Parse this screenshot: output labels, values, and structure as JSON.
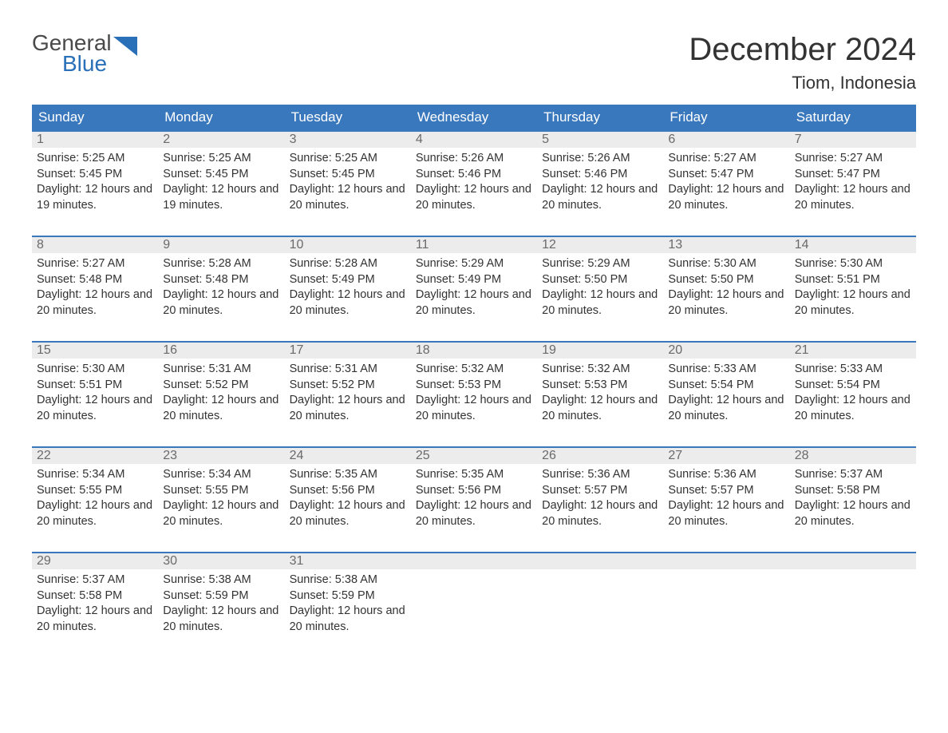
{
  "logo": {
    "word1": "General",
    "word2": "Blue",
    "word1_color": "#4a4a4a",
    "word2_color": "#2a70b8",
    "triangle_color": "#2a70b8"
  },
  "title": "December 2024",
  "location": "Tiom, Indonesia",
  "colors": {
    "header_bg": "#3a78bd",
    "header_text": "#ffffff",
    "daynum_bg": "#ececec",
    "daynum_text": "#6a6a6a",
    "body_text": "#333333",
    "week_border": "#3a78bd",
    "page_bg": "#ffffff"
  },
  "typography": {
    "title_fontsize": 40,
    "location_fontsize": 22,
    "weekday_fontsize": 17,
    "daynum_fontsize": 16,
    "body_fontsize": 14.5,
    "font_family": "Arial"
  },
  "weekdays": [
    "Sunday",
    "Monday",
    "Tuesday",
    "Wednesday",
    "Thursday",
    "Friday",
    "Saturday"
  ],
  "labels": {
    "sunrise": "Sunrise:",
    "sunset": "Sunset:",
    "daylight": "Daylight:"
  },
  "weeks": [
    [
      {
        "n": "1",
        "sunrise": "5:25 AM",
        "sunset": "5:45 PM",
        "daylight": "12 hours and 19 minutes."
      },
      {
        "n": "2",
        "sunrise": "5:25 AM",
        "sunset": "5:45 PM",
        "daylight": "12 hours and 19 minutes."
      },
      {
        "n": "3",
        "sunrise": "5:25 AM",
        "sunset": "5:45 PM",
        "daylight": "12 hours and 20 minutes."
      },
      {
        "n": "4",
        "sunrise": "5:26 AM",
        "sunset": "5:46 PM",
        "daylight": "12 hours and 20 minutes."
      },
      {
        "n": "5",
        "sunrise": "5:26 AM",
        "sunset": "5:46 PM",
        "daylight": "12 hours and 20 minutes."
      },
      {
        "n": "6",
        "sunrise": "5:27 AM",
        "sunset": "5:47 PM",
        "daylight": "12 hours and 20 minutes."
      },
      {
        "n": "7",
        "sunrise": "5:27 AM",
        "sunset": "5:47 PM",
        "daylight": "12 hours and 20 minutes."
      }
    ],
    [
      {
        "n": "8",
        "sunrise": "5:27 AM",
        "sunset": "5:48 PM",
        "daylight": "12 hours and 20 minutes."
      },
      {
        "n": "9",
        "sunrise": "5:28 AM",
        "sunset": "5:48 PM",
        "daylight": "12 hours and 20 minutes."
      },
      {
        "n": "10",
        "sunrise": "5:28 AM",
        "sunset": "5:49 PM",
        "daylight": "12 hours and 20 minutes."
      },
      {
        "n": "11",
        "sunrise": "5:29 AM",
        "sunset": "5:49 PM",
        "daylight": "12 hours and 20 minutes."
      },
      {
        "n": "12",
        "sunrise": "5:29 AM",
        "sunset": "5:50 PM",
        "daylight": "12 hours and 20 minutes."
      },
      {
        "n": "13",
        "sunrise": "5:30 AM",
        "sunset": "5:50 PM",
        "daylight": "12 hours and 20 minutes."
      },
      {
        "n": "14",
        "sunrise": "5:30 AM",
        "sunset": "5:51 PM",
        "daylight": "12 hours and 20 minutes."
      }
    ],
    [
      {
        "n": "15",
        "sunrise": "5:30 AM",
        "sunset": "5:51 PM",
        "daylight": "12 hours and 20 minutes."
      },
      {
        "n": "16",
        "sunrise": "5:31 AM",
        "sunset": "5:52 PM",
        "daylight": "12 hours and 20 minutes."
      },
      {
        "n": "17",
        "sunrise": "5:31 AM",
        "sunset": "5:52 PM",
        "daylight": "12 hours and 20 minutes."
      },
      {
        "n": "18",
        "sunrise": "5:32 AM",
        "sunset": "5:53 PM",
        "daylight": "12 hours and 20 minutes."
      },
      {
        "n": "19",
        "sunrise": "5:32 AM",
        "sunset": "5:53 PM",
        "daylight": "12 hours and 20 minutes."
      },
      {
        "n": "20",
        "sunrise": "5:33 AM",
        "sunset": "5:54 PM",
        "daylight": "12 hours and 20 minutes."
      },
      {
        "n": "21",
        "sunrise": "5:33 AM",
        "sunset": "5:54 PM",
        "daylight": "12 hours and 20 minutes."
      }
    ],
    [
      {
        "n": "22",
        "sunrise": "5:34 AM",
        "sunset": "5:55 PM",
        "daylight": "12 hours and 20 minutes."
      },
      {
        "n": "23",
        "sunrise": "5:34 AM",
        "sunset": "5:55 PM",
        "daylight": "12 hours and 20 minutes."
      },
      {
        "n": "24",
        "sunrise": "5:35 AM",
        "sunset": "5:56 PM",
        "daylight": "12 hours and 20 minutes."
      },
      {
        "n": "25",
        "sunrise": "5:35 AM",
        "sunset": "5:56 PM",
        "daylight": "12 hours and 20 minutes."
      },
      {
        "n": "26",
        "sunrise": "5:36 AM",
        "sunset": "5:57 PM",
        "daylight": "12 hours and 20 minutes."
      },
      {
        "n": "27",
        "sunrise": "5:36 AM",
        "sunset": "5:57 PM",
        "daylight": "12 hours and 20 minutes."
      },
      {
        "n": "28",
        "sunrise": "5:37 AM",
        "sunset": "5:58 PM",
        "daylight": "12 hours and 20 minutes."
      }
    ],
    [
      {
        "n": "29",
        "sunrise": "5:37 AM",
        "sunset": "5:58 PM",
        "daylight": "12 hours and 20 minutes."
      },
      {
        "n": "30",
        "sunrise": "5:38 AM",
        "sunset": "5:59 PM",
        "daylight": "12 hours and 20 minutes."
      },
      {
        "n": "31",
        "sunrise": "5:38 AM",
        "sunset": "5:59 PM",
        "daylight": "12 hours and 20 minutes."
      },
      {
        "empty": true
      },
      {
        "empty": true
      },
      {
        "empty": true
      },
      {
        "empty": true
      }
    ]
  ]
}
